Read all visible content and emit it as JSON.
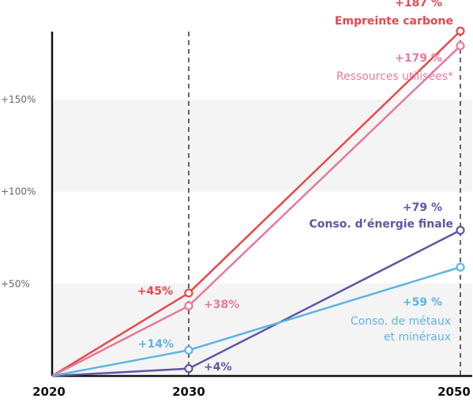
{
  "chart_data": {
    "type": "line",
    "x": [
      2020,
      2030,
      2050
    ],
    "xticks": [
      "2020",
      "2030",
      "2050"
    ],
    "yticks": [
      {
        "value": 50,
        "label": "+50%"
      },
      {
        "value": 100,
        "label": "+100%"
      },
      {
        "value": 150,
        "label": "+150%"
      }
    ],
    "ylim": [
      0,
      187
    ],
    "grid_bands": [
      [
        0,
        50
      ],
      [
        100,
        150
      ]
    ],
    "vertical_reference_lines": [
      2030,
      2050
    ],
    "series": [
      {
        "name": "Empreinte carbone",
        "color": "#e8474c",
        "values": [
          0,
          45,
          187
        ],
        "labels": {
          "2030": "+45%",
          "2050": "+187 %"
        }
      },
      {
        "name": "Ressources utilisées*",
        "color": "#e77a9c",
        "values": [
          0,
          38,
          179
        ],
        "labels": {
          "2030": "+38%",
          "2050": "+179 %"
        }
      },
      {
        "name": "Conso. d’énergie finale",
        "color": "#5e55a6",
        "values": [
          0,
          4,
          79
        ],
        "labels": {
          "2030": "+4%",
          "2050": "+79 %"
        }
      },
      {
        "name": "Conso. de métaux et minéraux",
        "name_lines": [
          "Conso. de métaux",
          "et minéraux"
        ],
        "color": "#5db4e4",
        "values": [
          0,
          14,
          59
        ],
        "labels": {
          "2030": "+14%",
          "2050": "+59 %"
        }
      }
    ]
  }
}
